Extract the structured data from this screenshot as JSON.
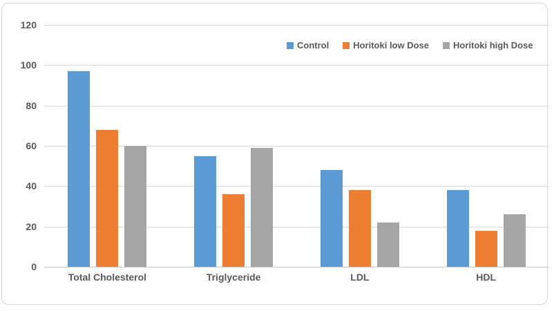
{
  "chart_data": {
    "type": "bar",
    "title": "",
    "categories": [
      "Total Cholesterol",
      "Triglyceride",
      "LDL",
      "HDL"
    ],
    "series": [
      {
        "name": "Control",
        "color": "#5B9BD5",
        "values": [
          97,
          55,
          48,
          38
        ]
      },
      {
        "name": "Horitoki low Dose",
        "color": "#ED7D31",
        "values": [
          68,
          36,
          38,
          18
        ]
      },
      {
        "name": "Horitoki high Dose",
        "color": "#A5A5A5",
        "values": [
          60,
          59,
          22,
          26
        ]
      }
    ],
    "xlabel": "",
    "ylabel": "",
    "ylim": [
      0,
      120
    ],
    "y_tick_step": 20,
    "y_tick_labels": [
      "0",
      "20",
      "40",
      "60",
      "80",
      "100",
      "120"
    ],
    "grid": true,
    "legend_position": "top-right"
  },
  "colors": {
    "background": "#FFFFFF",
    "frame_border": "#D6D6D6",
    "gridline": "#D9D9D9",
    "axis_line": "#C6C6C6",
    "label_text": "#595959"
  }
}
